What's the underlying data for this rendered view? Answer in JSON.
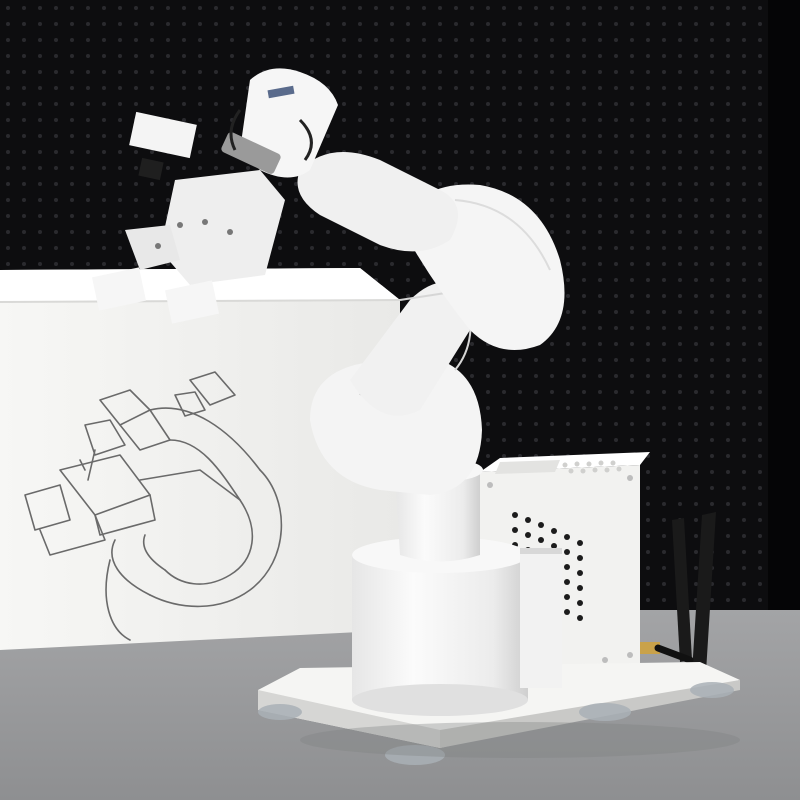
{
  "image": {
    "subject": "six-axis-collaborative-robot-arm-with-gripper",
    "colors": {
      "backdrop": "#0d0d0f",
      "pegboard_hole": "#2a2a2e",
      "table": "#9b9c9e",
      "box": "#f4f4f2",
      "sketch_line": "#6a6a6a",
      "robot_white": "#f1f1f1",
      "robot_shadow": "#d4d4d4",
      "joint_gray": "#9a9a9a",
      "antenna": "#1a1a1a",
      "connector_gold": "#c9a24a",
      "suction_cup": "#a9b0b6"
    }
  }
}
